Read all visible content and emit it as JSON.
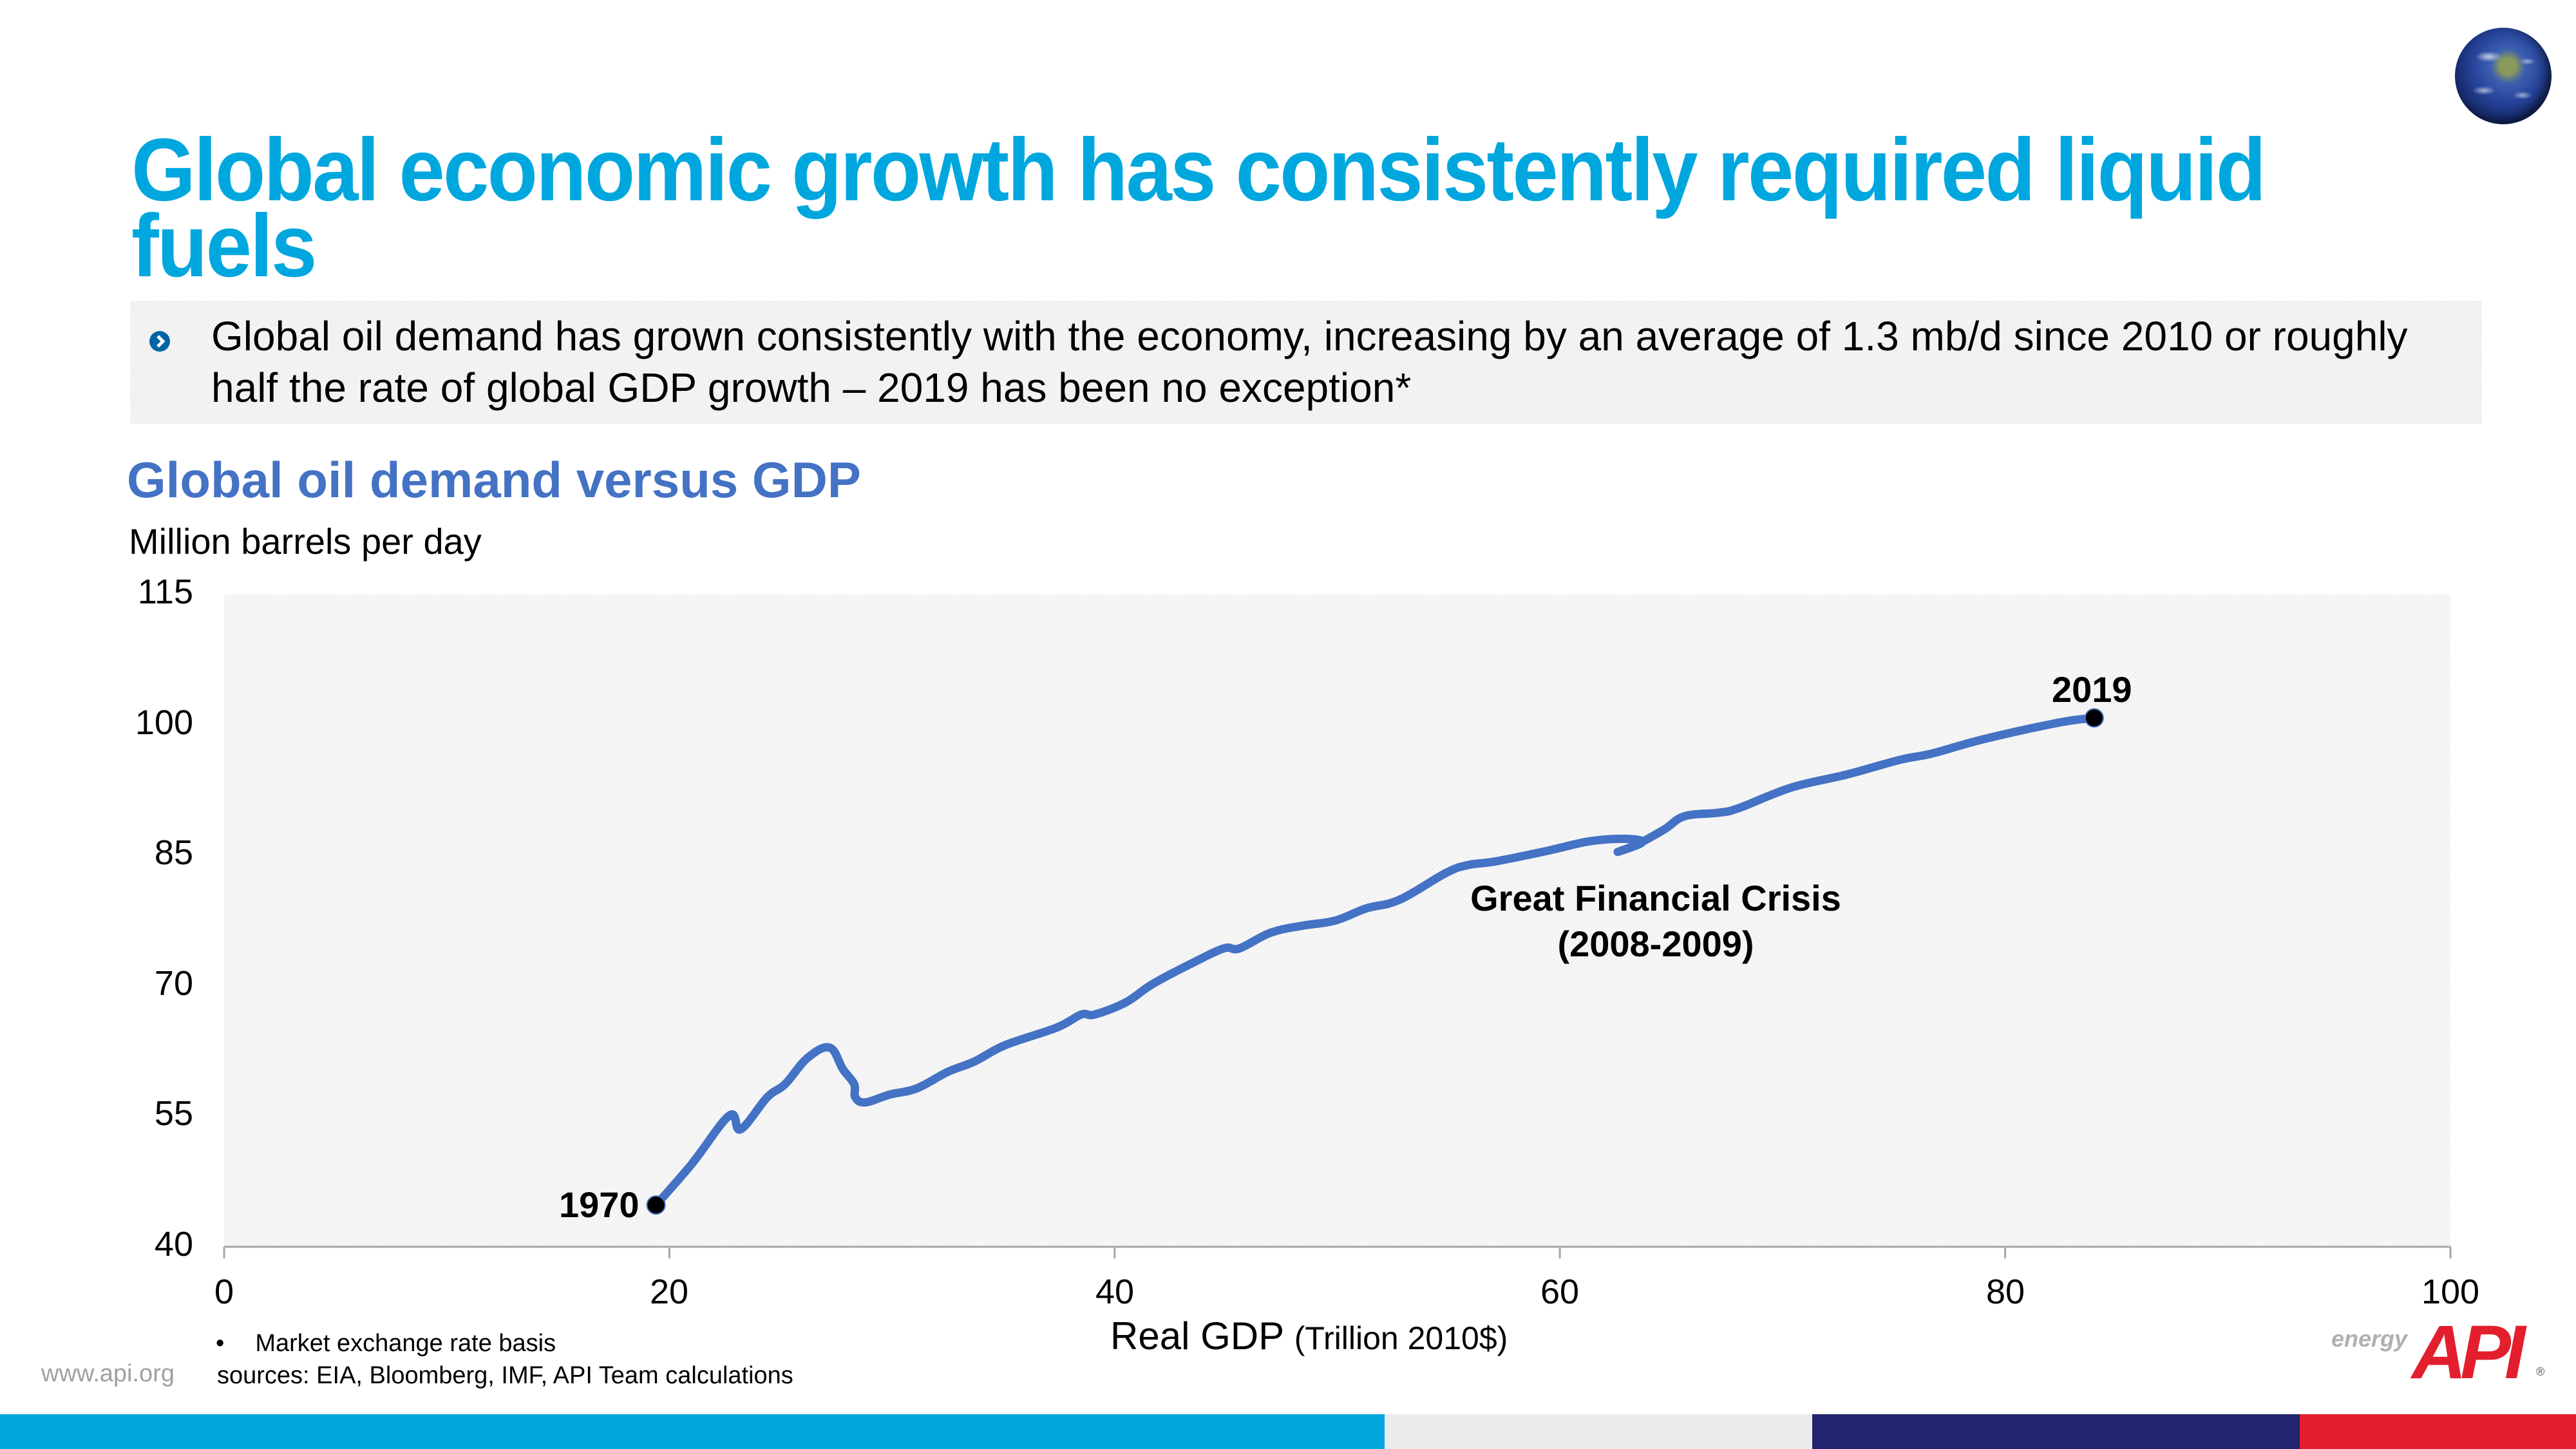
{
  "header": {
    "title": "Global economic growth has consistently required liquid fuels",
    "globe_icon": "earth-globe-icon"
  },
  "bullet": {
    "icon": "chevron-right-circle-icon",
    "text": "Global oil demand has grown consistently with the economy, increasing by an average of 1.3 mb/d since 2010 or roughly half the rate of global GDP growth – 2019 has been no exception*"
  },
  "colors": {
    "title": "#00a7de",
    "chart_title": "#4472c4",
    "line": "#4472c4",
    "footer": [
      "#00a7de",
      "#ebebeb",
      "#22246e",
      "#e31e2d"
    ],
    "api_red": "#e31e2d"
  },
  "chart_data": {
    "type": "line",
    "title": "Global oil demand versus GDP",
    "ylabel": "Million barrels per day",
    "xlabel": "Real GDP",
    "xlabel_unit": "(Trillion 2010$)",
    "xlim": [
      0,
      100
    ],
    "ylim": [
      40,
      115
    ],
    "xticks": [
      "0",
      "20",
      "40",
      "60",
      "80",
      "100"
    ],
    "yticks": [
      "115",
      "100",
      "85",
      "70",
      "55",
      "40"
    ],
    "grid": false,
    "series": [
      {
        "name": "Global oil demand",
        "points": [
          [
            19.4,
            44.8
          ],
          [
            21.0,
            49.5
          ],
          [
            22.7,
            55.1
          ],
          [
            23.2,
            53.5
          ],
          [
            24.4,
            57.2
          ],
          [
            25.2,
            58.7
          ],
          [
            26.2,
            61.7
          ],
          [
            27.2,
            62.9
          ],
          [
            27.8,
            60.4
          ],
          [
            28.3,
            58.7
          ],
          [
            28.35,
            57.2
          ],
          [
            28.8,
            56.6
          ],
          [
            29.9,
            57.5
          ],
          [
            31.1,
            58.2
          ],
          [
            32.5,
            60.1
          ],
          [
            33.7,
            61.3
          ],
          [
            35.1,
            63.2
          ],
          [
            37.4,
            65.2
          ],
          [
            38.5,
            66.7
          ],
          [
            39.1,
            66.7
          ],
          [
            40.5,
            68.1
          ],
          [
            41.7,
            70.2
          ],
          [
            43.4,
            72.5
          ],
          [
            44.9,
            74.3
          ],
          [
            45.6,
            74.3
          ],
          [
            47.0,
            76.1
          ],
          [
            48.4,
            76.9
          ],
          [
            49.9,
            77.5
          ],
          [
            51.3,
            78.9
          ],
          [
            52.8,
            79.9
          ],
          [
            54.9,
            83.0
          ],
          [
            55.9,
            83.9
          ],
          [
            57.1,
            84.3
          ],
          [
            59.4,
            85.5
          ],
          [
            61.3,
            86.6
          ],
          [
            62.9,
            86.9
          ],
          [
            63.7,
            86.5
          ],
          [
            62.6,
            85.4
          ],
          [
            63.5,
            86.3
          ],
          [
            64.7,
            88.0
          ],
          [
            65.6,
            89.5
          ],
          [
            67.1,
            89.9
          ],
          [
            68.0,
            90.4
          ],
          [
            70.4,
            92.8
          ],
          [
            72.9,
            94.3
          ],
          [
            75.3,
            96.0
          ],
          [
            76.7,
            96.7
          ],
          [
            79.1,
            98.4
          ],
          [
            82.5,
            100.3
          ],
          [
            84.0,
            100.8
          ]
        ]
      }
    ],
    "annotations": [
      {
        "label": "1970",
        "x": 19.4,
        "y": 44.8,
        "marker": true
      },
      {
        "label": "2019",
        "x": 84.0,
        "y": 100.8,
        "marker": true
      },
      {
        "label": "Great Financial Crisis",
        "sub": "(2008-2009)",
        "x": 63.0,
        "y": 86.5,
        "marker": false
      }
    ]
  },
  "notes": {
    "bullet": "•",
    "market": "Market exchange rate basis",
    "sources": "sources:  EIA, Bloomberg, IMF, API Team calculations"
  },
  "footer": {
    "url": "www.api.org",
    "logo_word": "energy",
    "logo_text": "API",
    "logo_mark": "®"
  }
}
